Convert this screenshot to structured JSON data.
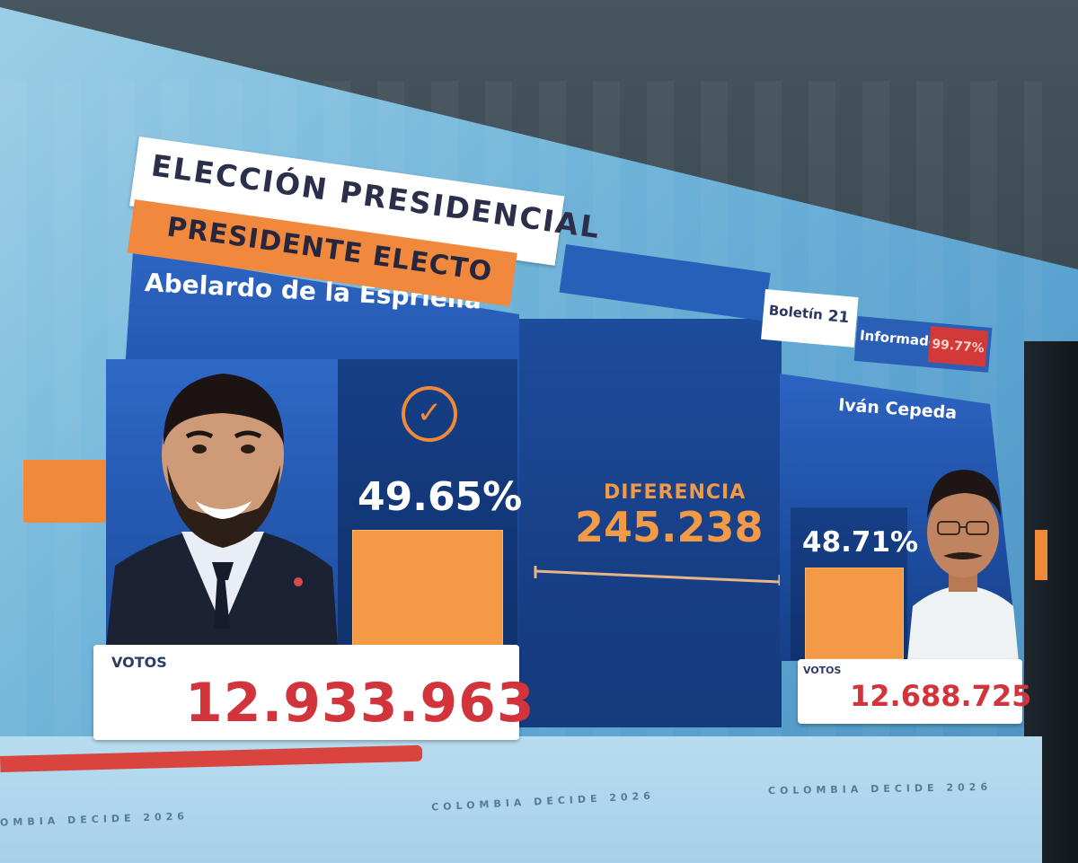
{
  "header": {
    "title": "ELECCIÓN PRESIDENCIAL",
    "subtitle": "PRESIDENTE ELECTO"
  },
  "bulletin": {
    "label": "Boletín",
    "number": "21",
    "reported_label": "Informado",
    "reported_pct": "99.77%"
  },
  "winner": {
    "name": "Abelardo de la Espriella",
    "percent": "49.65%",
    "votes_label": "VOTOS",
    "votes": "12.933.963",
    "check_icon": "check-circle-icon"
  },
  "runner_up": {
    "name": "Iván Cepeda",
    "percent": "48.71%",
    "votes_label": "VOTOS",
    "votes": "12.688.725"
  },
  "difference": {
    "label": "DIFERENCIA",
    "value": "245.238"
  },
  "footer": {
    "brand": "COLOMBIA DECIDE 2026",
    "brand_partial": "OMBIA DECIDE 2026"
  },
  "colors": {
    "accent_orange": "#f08a3a",
    "panel_blue": "#1e4fa3",
    "vote_red": "#d1343a"
  }
}
